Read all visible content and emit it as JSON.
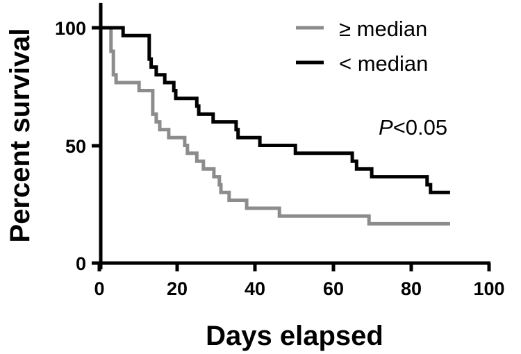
{
  "chart_data": {
    "type": "line",
    "subtype": "kaplan-meier-step",
    "title": "",
    "xlabel": "Days elapsed",
    "ylabel": "Percent survival",
    "xlim": [
      0,
      100
    ],
    "ylim": [
      0,
      100
    ],
    "x_ticks": [
      0,
      20,
      40,
      60,
      80,
      100
    ],
    "y_ticks": [
      0,
      50,
      100
    ],
    "grid": false,
    "legend_position": "top-right",
    "series": [
      {
        "name": "≥ median",
        "color": "#8c8c8c",
        "points": [
          [
            0,
            100
          ],
          [
            3.0,
            90.0
          ],
          [
            3.6,
            80.0
          ],
          [
            4.3,
            76.7
          ],
          [
            10.2,
            73.3
          ],
          [
            13.7,
            63.3
          ],
          [
            14.6,
            60.0
          ],
          [
            15.5,
            56.7
          ],
          [
            17.8,
            53.3
          ],
          [
            21.9,
            50.0
          ],
          [
            22.6,
            46.7
          ],
          [
            25.0,
            43.3
          ],
          [
            26.7,
            40.0
          ],
          [
            29.4,
            36.7
          ],
          [
            30.8,
            33.3
          ],
          [
            31.2,
            30.0
          ],
          [
            33.3,
            26.7
          ],
          [
            37.8,
            23.3
          ],
          [
            46.2,
            20.0
          ],
          [
            69.2,
            16.7
          ],
          [
            90,
            16.7
          ]
        ]
      },
      {
        "name": "< median",
        "color": "#000000",
        "points": [
          [
            0,
            100
          ],
          [
            6.1,
            96.7
          ],
          [
            12.8,
            86.7
          ],
          [
            13.3,
            83.3
          ],
          [
            14.6,
            80.0
          ],
          [
            16.8,
            76.7
          ],
          [
            19.1,
            73.3
          ],
          [
            19.6,
            70.0
          ],
          [
            25.0,
            66.7
          ],
          [
            25.5,
            63.3
          ],
          [
            29.2,
            60.0
          ],
          [
            35.1,
            56.7
          ],
          [
            35.6,
            53.3
          ],
          [
            41.2,
            50.0
          ],
          [
            50.3,
            46.7
          ],
          [
            64.9,
            43.3
          ],
          [
            66.0,
            40.0
          ],
          [
            69.9,
            36.7
          ],
          [
            84.1,
            33.3
          ],
          [
            85.0,
            30.0
          ],
          [
            90,
            30.0
          ]
        ]
      }
    ],
    "annotations": [
      {
        "text_italic": "P",
        "text": "<0.05"
      }
    ]
  },
  "legend": {
    "items": [
      {
        "label": "≥ median",
        "color": "#8c8c8c"
      },
      {
        "label": "< median",
        "color": "#000000"
      }
    ]
  },
  "annotation": {
    "p_italic": "P",
    "p_rest": "<0.05"
  },
  "axes": {
    "xlabel": "Days elapsed",
    "ylabel": "Percent survival",
    "x_tick_labels": [
      "0",
      "20",
      "40",
      "60",
      "80",
      "100"
    ],
    "y_tick_labels": [
      "0",
      "50",
      "100"
    ]
  }
}
